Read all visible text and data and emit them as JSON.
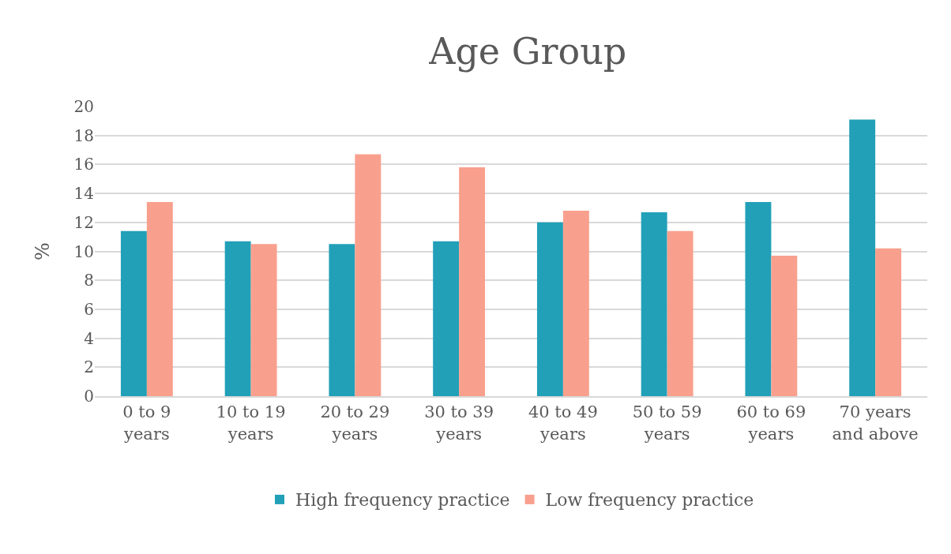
{
  "chart_data": {
    "type": "bar",
    "title": "Age Group",
    "ylabel": "%",
    "categories": [
      "0 to 9 years",
      "10 to 19 years",
      "20 to 29 years",
      "30 to 39 years",
      "40 to 49 years",
      "50 to 59 years",
      "60 to 69 years",
      "70 years and above"
    ],
    "series": [
      {
        "name": "High frequency practice",
        "color": "#21a0b8",
        "values": [
          11.4,
          10.7,
          10.5,
          10.7,
          12.0,
          12.7,
          13.4,
          19.1
        ]
      },
      {
        "name": "Low frequency practice",
        "color": "#f8a08d",
        "values": [
          13.4,
          10.5,
          16.7,
          15.8,
          12.8,
          11.4,
          9.7,
          10.2
        ]
      }
    ],
    "ylim": [
      0,
      20
    ],
    "yticks": [
      0,
      2,
      4,
      6,
      8,
      10,
      12,
      14,
      16,
      18,
      20
    ],
    "grid": "y",
    "legend": "bottom"
  }
}
